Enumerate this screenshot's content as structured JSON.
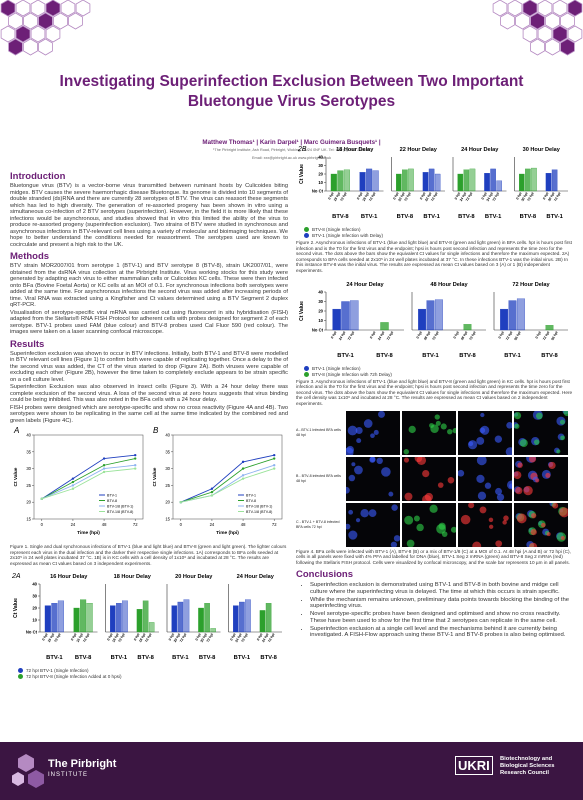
{
  "header": {
    "title": "Investigating Superinfection Exclusion Between Two Important Bluetongue Virus Serotypes",
    "authors": "Matthew Thomas¹ | Karin Darpel¹ | Marc Guimera Busquets¹ |",
    "affiliation": "¹The Pirbright Institute, Ash Road, Pirbright, Woking, GU24 0NF UK. Tel: +44 (0)1483 232441",
    "contact": "Email: xxx@pirbright.ac.uk  www.pirbright.ac.uk"
  },
  "introduction": {
    "heading": "Introduction",
    "text": "Bluetongue virus (BTV) is a vector-borne virus transmitted between ruminant hosts by Culicoides biting midges. BTV causes the severe haemorrhagic disease Bluetongue. Its genome is divided into 10 segments of double stranded (ds)RNA and there are currently 28 serotypes of BTV. The virus can reassort these segments which has led to high diversity. The generation of re-assorted progeny has been shown in vitro using a simultaneous co-infection of 2 BTV serotypes (superinfection). However, in the field it is more likely that these infections would be asynchronous, and studies showed that in vitro this limited the ability of the virus to produce re-assorted progeny (superinfection exclusion). Two strains of BTV were studied in synchronous and asynchronous infections in BTV-relevant cell lines using a variety of molecular and bioimaging techniques. We hope to better understand the conditions needed for reassortment. The serotypes used are known to cocirculate and present a high risk to the UK."
  },
  "methods": {
    "heading": "Methods",
    "paragraphs": [
      "BTV strain MOR2007/01 from serotype 1 (BTV-1) and BTV serotype 8 (BTV-8), strain UK2007/01, were obtained from the dsRNA virus collection at the Pirbright Institute. Virus working stocks for this study were generated by adapting each virus to either mammalian cells or Culicoides KC cells. These were then infected onto BFa (Bovine Foetal Aorta) or KC cells at an MOI of 0.1. For synchronous infections both serotypes were added at the same time. For asynchronous infections the second virus was added after increasing periods of time. Viral RNA was extracted using a Kingfisher and Ct values determined using a BTV Segment 2 duplex qRT-PCR.",
      "Visualisation of serotype-specific viral mRNA was carried out using fluorescent in situ hybridisation (FISH) adapted from the Stellaris® RNA FISH Protocol for adherent cells with probes designed for segment 2 of each serotype. BTV-1 probes used FAM (blue colour) and BTV-8 probes used Cal Fluor 590 (red colour). The images were taken on a laser scanning confocal microscope."
    ]
  },
  "results": {
    "heading": "Results",
    "paragraphs": [
      "Superinfection exclusion was shown to occur in BTV infections. Initially, both BTV-1 and BTV-8 were modelled in BTV relevant cell lines (Figure 1) to confirm both were capable of replicating together. Once a delay to the of the second virus was added, the CT of the virus started to drop (Figure 2A). Both viruses were capable of excluding each other (Figure 2B), however the time taken to completely exclude appears to be strain specific on a cell culture level.",
      "Superinfection Exclusion was also observed in insect cells (Figure 3). With a 24 hour delay there was complete exclusion of the second virus. A loss of the second virus at zero hours suggests that virus binding could be being inhibited. This was also noted in the BFa cells with a 24 hour delay.",
      "FISH probes were designed which are serotype-specific and show no cross reactivity (Figure 4A and 4B). Two serotypes were shown to be replicating in the same cell at the same time indicated by the combined red and green labels (Figure 4C)."
    ]
  },
  "figure_1": {
    "x_label": "Time (hpi)",
    "y_label": "Ct Value",
    "x": [
      0,
      24,
      48,
      72
    ],
    "xlim": [
      -6,
      78
    ],
    "xticks": [
      0,
      24,
      48,
      72
    ],
    "ylim": [
      15,
      40
    ],
    "yticks": [
      15,
      20,
      25,
      30,
      35,
      40
    ],
    "panels": [
      {
        "label": "A",
        "series": [
          {
            "name": "BTV-1",
            "color": "#1f3fbf",
            "values": [
              21,
              27,
              33,
              34
            ]
          },
          {
            "name": "BTV-8",
            "color": "#2ca02c",
            "values": [
              21,
              26,
              31,
              33
            ]
          },
          {
            "name": "BTV-1/8 (BTV-1)",
            "color": "#8fb3f0",
            "values": [
              21,
              25,
              30,
              31
            ]
          },
          {
            "name": "BTV-1/8 (BTV-8)",
            "color": "#9be39b",
            "values": [
              21,
              24,
              29,
              30
            ]
          }
        ]
      },
      {
        "label": "B",
        "series": [
          {
            "name": "BTV-1",
            "color": "#1f3fbf",
            "values": [
              20,
              24,
              32,
              34
            ]
          },
          {
            "name": "BTV-8",
            "color": "#2ca02c",
            "values": [
              20,
              23,
              30,
              33
            ]
          },
          {
            "name": "BTV-1/8 (BTV-1)",
            "color": "#8fb3f0",
            "values": [
              20,
              22,
              28,
              31
            ]
          },
          {
            "name": "BTV-1/8 (BTV-8)",
            "color": "#9be39b",
            "values": [
              20,
              22,
              27,
              30
            ]
          }
        ]
      }
    ],
    "caption": "Figure 1. Single and dual synchronous infections of BTV-1 (blue and light blue) and BTV-8 (green and light green). The lighter colours represent each virus in the dual infection and the darker their respective single infections. 1A) corresponds to BFa cells seeded at 2x10⁵ in 24 well plates incubated 37 °C. 1B) is in KC cells with a cell density of 1x10⁶ and incubated at 28 °C. The results are expressed as mean Ct values based on 3 independent experiments."
  },
  "figure_2a": {
    "label": "2A",
    "y_label": "Ct Value",
    "ylim": [
      0,
      40
    ],
    "yticks": [
      {
        "value": 0,
        "label": "No Ct"
      },
      10,
      20,
      30,
      40
    ],
    "panels": [
      {
        "title": "16 Hour Delay",
        "categories": [
          "0 hpi",
          "16 hpi",
          "72 hpi"
        ],
        "series": [
          {
            "name": "BTV-1",
            "color": "#1f3fbf",
            "values": [
              22,
              24,
              26
            ]
          },
          {
            "name": "BTV-8",
            "color": "#2ca02c",
            "values": [
              20,
              27,
              24
            ]
          }
        ]
      },
      {
        "title": "18 Hour Delay",
        "categories": [
          "0 hpi",
          "18 hpi",
          "72 hpi"
        ],
        "series": [
          {
            "name": "BTV-1",
            "color": "#1f3fbf",
            "values": [
              22,
              24,
              26
            ]
          },
          {
            "name": "BTV-8",
            "color": "#2ca02c",
            "values": [
              19,
              26,
              8
            ]
          }
        ]
      },
      {
        "title": "20 Hour Delay",
        "categories": [
          "0 hpi",
          "20 hpi",
          "72 hpi"
        ],
        "series": [
          {
            "name": "BTV-1",
            "color": "#1f3fbf",
            "values": [
              22,
              25,
              27
            ]
          },
          {
            "name": "BTV-8",
            "color": "#2ca02c",
            "values": [
              20,
              24,
              3
            ]
          }
        ]
      },
      {
        "title": "24 Hour Delay",
        "categories": [
          "0 hpi",
          "24 hpi",
          "72 hpi"
        ],
        "series": [
          {
            "name": "BTV-1",
            "color": "#1f3fbf",
            "values": [
              22,
              25,
              27
            ]
          },
          {
            "name": "BTV-8",
            "color": "#2ca02c",
            "values": [
              18,
              24,
              0
            ]
          }
        ]
      }
    ],
    "legend": [
      {
        "label": "72 hpI BTV-1 (Single Infection)",
        "color": "#1f3fbf"
      },
      {
        "label": "72 hpI BTV-8 (Single Infection Added at 0 hpsi)",
        "color": "#2ca02c"
      }
    ]
  },
  "figure_2b": {
    "label": "2B",
    "y_label": "Ct Value",
    "ylim": [
      0,
      40
    ],
    "yticks": [
      {
        "value": 0,
        "label": "No Ct"
      },
      10,
      20,
      30,
      40
    ],
    "panels": [
      {
        "title": "18 Hour Delay",
        "categories": [
          "0 hpi",
          "18 hpi",
          "72 hpi"
        ],
        "series": [
          {
            "name": "BTV-8",
            "color": "#2ca02c",
            "values": [
              20,
              24,
              25
            ]
          },
          {
            "name": "BTV-1",
            "color": "#1f3fbf",
            "values": [
              22,
              26,
              24
            ]
          }
        ]
      },
      {
        "title": "22 Hour Delay",
        "categories": [
          "0 hpi",
          "22 hpi",
          "72 hpi"
        ],
        "series": [
          {
            "name": "BTV-8",
            "color": "#2ca02c",
            "values": [
              20,
              25,
              26
            ]
          },
          {
            "name": "BTV-1",
            "color": "#1f3fbf",
            "values": [
              22,
              26,
              20
            ]
          }
        ]
      },
      {
        "title": "24 Hour Delay",
        "categories": [
          "0 hpi",
          "24 hpi",
          "72 hpi"
        ],
        "series": [
          {
            "name": "BTV-8",
            "color": "#2ca02c",
            "values": [
              20,
              25,
              26
            ]
          },
          {
            "name": "BTV-1",
            "color": "#1f3fbf",
            "values": [
              21,
              26,
              12
            ]
          }
        ]
      },
      {
        "title": "30 Hour Delay",
        "categories": [
          "0 hpi",
          "30 hpi",
          "72 hpi"
        ],
        "series": [
          {
            "name": "BTV-8",
            "color": "#2ca02c",
            "values": [
              20,
              26,
              27
            ]
          },
          {
            "name": "BTV-1",
            "color": "#1f3fbf",
            "values": [
              21,
              25,
              0
            ]
          }
        ]
      }
    ],
    "legend": [
      {
        "label": "BTV-8 (Single Infection)",
        "color": "#2ca02c"
      },
      {
        "label": "BTV-1 (Single Infection with Delay)",
        "color": "#1f3fbf"
      }
    ],
    "caption": "Figure 2. Asynchronous infections of BTV-1 (blue and light blue) and BTV-8 (green and light green) in BFA cells. hpI is hours post first infection and is the T0 for the first virus and the endpoint; hpsi is hours post second infection and represents the time zero for the second virus. The dots above the bars show the equivalent Ct values for single infections and therefore the maximum expected. 2A) corresponds to BFA cells seeded at 2x10⁵ in 24 well plates incubated at 37 °C. In these infections BTV-1 was the initial virus. 2B) In this instance BTV-8 was the initial virus. The results are expressed as mean Ct values based on 3 (A) or 1 (B) independent experiments."
  },
  "figure_3": {
    "y_label": "Ct Value",
    "ylim": [
      0,
      40
    ],
    "yticks": [
      {
        "value": 0,
        "label": "No Ct"
      },
      10,
      20,
      30,
      40
    ],
    "panels": [
      {
        "title": "24 Hour Delay",
        "categories": [
          "0 hpi",
          "24 hpi",
          "72 hpi"
        ],
        "series": [
          {
            "name": "BTV-1",
            "color": "#1f3fbf",
            "values": [
              22,
              30,
              31
            ]
          },
          {
            "name": "BTV-8",
            "color": "#2ca02c",
            "values": [
              0,
              8,
              0
            ]
          }
        ]
      },
      {
        "title": "48 Hour Delay",
        "categories": [
          "0 hpi",
          "48 hpi",
          "72 hpi"
        ],
        "series": [
          {
            "name": "BTV-1",
            "color": "#1f3fbf",
            "values": [
              22,
              31,
              32
            ]
          },
          {
            "name": "BTV-8",
            "color": "#2ca02c",
            "values": [
              0,
              6,
              0
            ]
          }
        ]
      },
      {
        "title": "72 Hour Delay",
        "categories": [
          "0 hpi",
          "72 hpi",
          "96 hpi"
        ],
        "series": [
          {
            "name": "BTV-1",
            "color": "#1f3fbf",
            "values": [
              22,
              31,
              33
            ]
          },
          {
            "name": "BTV-8",
            "color": "#2ca02c",
            "values": [
              0,
              5,
              0
            ]
          }
        ]
      }
    ],
    "legend": [
      {
        "label": "BTV-1 (Single Infection)",
        "color": "#1f3fbf"
      },
      {
        "label": "BTV-8 (Single Infection with 72h Delay)",
        "color": "#2ca02c"
      }
    ],
    "caption": "Figure 3. Asynchronous infections of BTV-1 (blue and light blue) and BTV-8 (green and light green) in KC cells. hpI is hours post first infection and is the T0 for the first virus and the endpoint; hpsi is hours post second infection and represents the time zero for the second virus. The dots above the bars show the equivalent Ct values for single infections and therefore the maximum expected. Here the cell density was 1x10⁶ and incubated at 28 °C. The results are expressed as mean Ct values based on 2 independent experiments."
  },
  "figure_4": {
    "row_labels": [
      "A - BTV-1 Infected BFA cells 48 hpi",
      "B - BTV-8 infected BFA cells 48 hpi",
      "C - BTV-1 + BTV-8 infected BFA cells 72 hpi"
    ],
    "caption": "Figure 4. BFa cells were infected with BTV-1 (A), BTV-8 (B) or a mix of BTV-1/8 (C) at a MOI of 0.1. At 48 hpi (A and B) or 72 hpi (C), cells in all panels were fixed with 4% PFA and labelled for DNA (blue), BTV-1 Seg 2 mRNA (green) and BTV-8 Seg 2 mRNA (red) following the Stellaris FISH protocol. Cells were visualized by confocal microscopy, and the scale bar represents 10 µm in all panels."
  },
  "conclusions": {
    "heading": "Conclusions",
    "items": [
      "Superinfection exclusion is demonstrated using BTV-1 and BTV-8 in both bovine and midge cell culture where the superinfecting virus is delayed. The time at which this occurs is strain specific.",
      "While the mechanism remains unknown, preliminary data points towards blocking the binding of the superinfecting virus.",
      "Novel serotype-specific probes have been designed and optimised and show no cross reactivity. These have been used to show for the first time that 2 serotypes can replicate in the same cell.",
      "Superinfection exclusion at a single cell level and the mechanisms behind it are currently being investigated. A FISH-Flow approach using these BTV-1 and BTV-8 probes is also being optimised."
    ]
  },
  "footer": {
    "institute_name": "The Pirbright",
    "institute_sub": "INSTITUTE",
    "funder_logo": "UKRI",
    "funder_name": "Biotechnology and Biological Sciences Research Council"
  }
}
